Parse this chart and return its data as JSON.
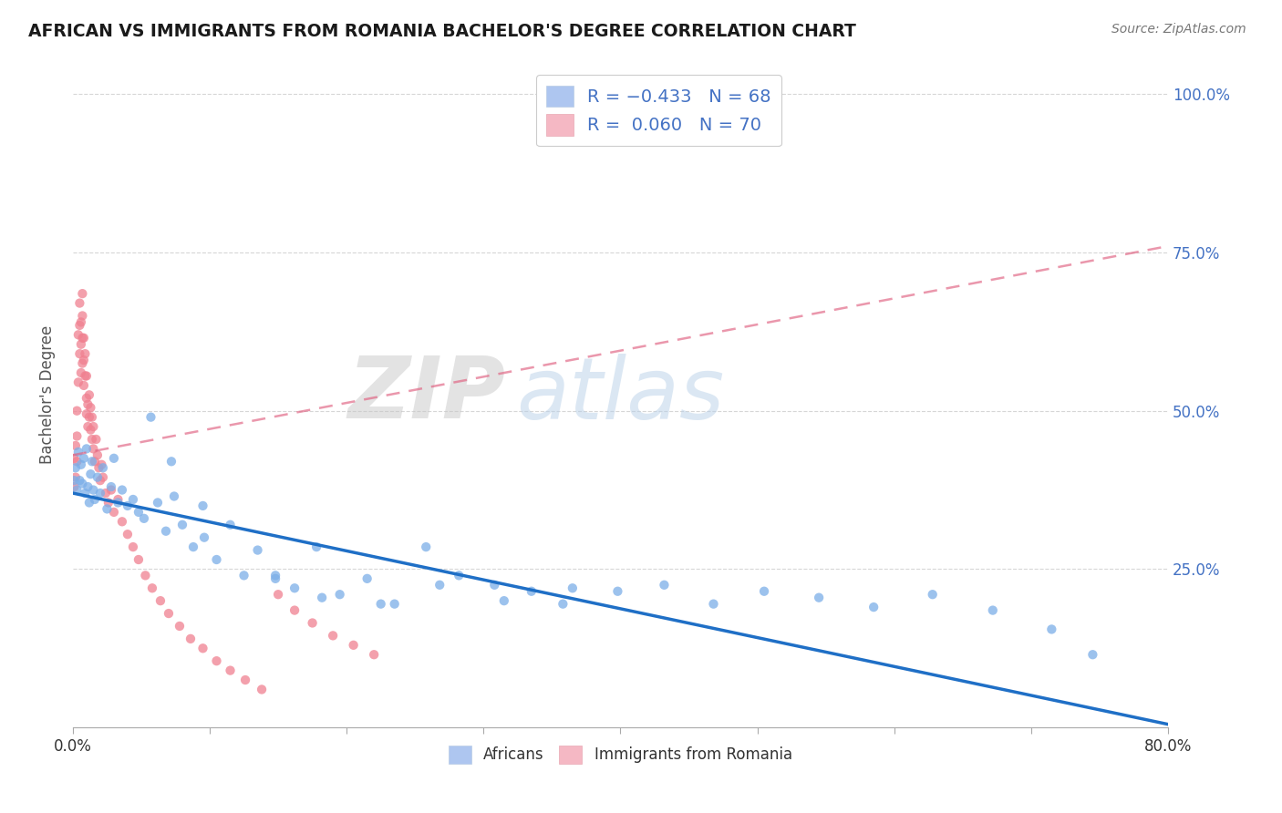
{
  "title": "AFRICAN VS IMMIGRANTS FROM ROMANIA BACHELOR'S DEGREE CORRELATION CHART",
  "source": "Source: ZipAtlas.com",
  "ylabel": "Bachelor's Degree",
  "legend_bottom": [
    "Africans",
    "Immigrants from Romania"
  ],
  "africans_color": "#7baee8",
  "romania_color": "#f08090",
  "trendline_african_color": "#1f6fc6",
  "trendline_romania_color": "#e06080",
  "watermark_zip": "ZIP",
  "watermark_atlas": "atlas",
  "xlim": [
    0.0,
    0.8
  ],
  "ylim": [
    0.0,
    1.05
  ],
  "africans_x": [
    0.001,
    0.002,
    0.003,
    0.004,
    0.005,
    0.006,
    0.007,
    0.008,
    0.009,
    0.01,
    0.011,
    0.012,
    0.013,
    0.014,
    0.015,
    0.016,
    0.018,
    0.02,
    0.022,
    0.025,
    0.028,
    0.03,
    0.033,
    0.036,
    0.04,
    0.044,
    0.048,
    0.052,
    0.057,
    0.062,
    0.068,
    0.074,
    0.08,
    0.088,
    0.096,
    0.105,
    0.115,
    0.125,
    0.135,
    0.148,
    0.162,
    0.178,
    0.195,
    0.215,
    0.235,
    0.258,
    0.282,
    0.308,
    0.335,
    0.365,
    0.398,
    0.432,
    0.468,
    0.505,
    0.545,
    0.585,
    0.628,
    0.672,
    0.715,
    0.745,
    0.148,
    0.095,
    0.072,
    0.182,
    0.225,
    0.268,
    0.315,
    0.358
  ],
  "africans_y": [
    0.39,
    0.41,
    0.375,
    0.435,
    0.39,
    0.415,
    0.385,
    0.425,
    0.37,
    0.44,
    0.38,
    0.355,
    0.4,
    0.42,
    0.375,
    0.36,
    0.395,
    0.37,
    0.41,
    0.345,
    0.38,
    0.425,
    0.355,
    0.375,
    0.35,
    0.36,
    0.34,
    0.33,
    0.49,
    0.355,
    0.31,
    0.365,
    0.32,
    0.285,
    0.3,
    0.265,
    0.32,
    0.24,
    0.28,
    0.235,
    0.22,
    0.285,
    0.21,
    0.235,
    0.195,
    0.285,
    0.24,
    0.225,
    0.215,
    0.22,
    0.215,
    0.225,
    0.195,
    0.215,
    0.205,
    0.19,
    0.21,
    0.185,
    0.155,
    0.115,
    0.24,
    0.35,
    0.42,
    0.205,
    0.195,
    0.225,
    0.2,
    0.195
  ],
  "romania_x": [
    0.001,
    0.001,
    0.002,
    0.002,
    0.003,
    0.003,
    0.003,
    0.004,
    0.004,
    0.005,
    0.005,
    0.005,
    0.006,
    0.006,
    0.006,
    0.007,
    0.007,
    0.007,
    0.007,
    0.008,
    0.008,
    0.008,
    0.009,
    0.009,
    0.01,
    0.01,
    0.01,
    0.011,
    0.011,
    0.012,
    0.012,
    0.013,
    0.013,
    0.014,
    0.014,
    0.015,
    0.015,
    0.016,
    0.017,
    0.018,
    0.019,
    0.02,
    0.021,
    0.022,
    0.024,
    0.026,
    0.028,
    0.03,
    0.033,
    0.036,
    0.04,
    0.044,
    0.048,
    0.053,
    0.058,
    0.064,
    0.07,
    0.078,
    0.086,
    0.095,
    0.105,
    0.115,
    0.126,
    0.138,
    0.15,
    0.162,
    0.175,
    0.19,
    0.205,
    0.22
  ],
  "romania_y": [
    0.38,
    0.425,
    0.395,
    0.445,
    0.42,
    0.46,
    0.5,
    0.545,
    0.62,
    0.59,
    0.635,
    0.67,
    0.56,
    0.605,
    0.64,
    0.575,
    0.615,
    0.65,
    0.685,
    0.54,
    0.58,
    0.615,
    0.555,
    0.59,
    0.52,
    0.555,
    0.495,
    0.475,
    0.51,
    0.49,
    0.525,
    0.47,
    0.505,
    0.455,
    0.49,
    0.44,
    0.475,
    0.42,
    0.455,
    0.43,
    0.41,
    0.39,
    0.415,
    0.395,
    0.37,
    0.355,
    0.375,
    0.34,
    0.36,
    0.325,
    0.305,
    0.285,
    0.265,
    0.24,
    0.22,
    0.2,
    0.18,
    0.16,
    0.14,
    0.125,
    0.105,
    0.09,
    0.075,
    0.06,
    0.21,
    0.185,
    0.165,
    0.145,
    0.13,
    0.115
  ],
  "trendline_afr_x0": 0.0,
  "trendline_afr_y0": 0.37,
  "trendline_afr_x1": 0.8,
  "trendline_afr_y1": 0.005,
  "trendline_rom_x0": 0.0,
  "trendline_rom_y0": 0.43,
  "trendline_rom_x1": 0.8,
  "trendline_rom_y1": 0.76
}
